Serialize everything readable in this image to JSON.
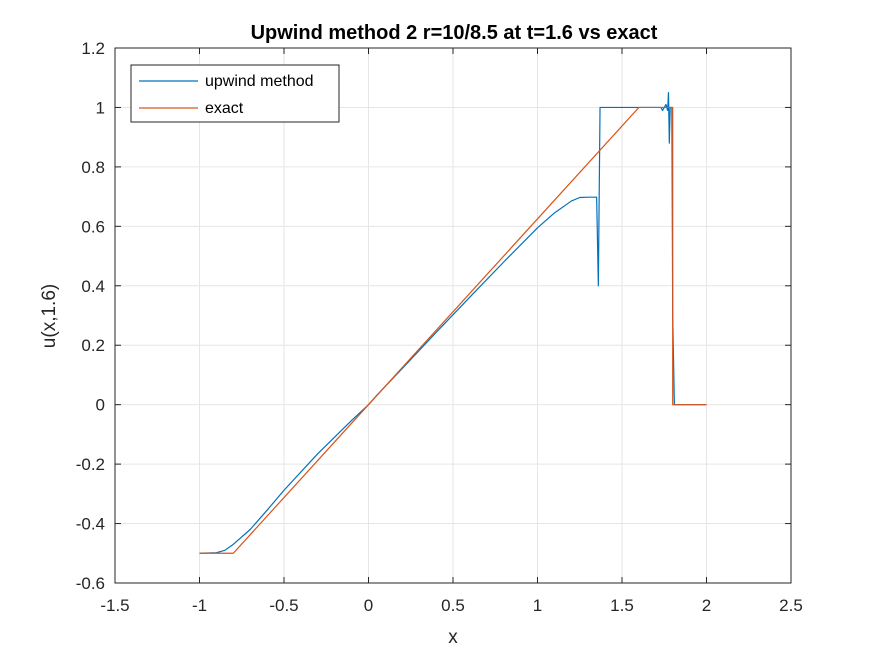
{
  "chart_data": {
    "type": "line",
    "title": "Upwind method 2 r=10/8.5 at t=1.6 vs exact",
    "xlabel": "x",
    "ylabel": "u(x,1.6)",
    "xlim": [
      -1.5,
      2.5
    ],
    "ylim": [
      -0.6,
      1.2
    ],
    "xticks": [
      -1.5,
      -1,
      -0.5,
      0,
      0.5,
      1,
      1.5,
      2,
      2.5
    ],
    "xtick_labels": [
      "-1.5",
      "-1",
      "-0.5",
      "0",
      "0.5",
      "1",
      "1.5",
      "2",
      "2.5"
    ],
    "yticks": [
      -0.6,
      -0.4,
      -0.2,
      0,
      0.2,
      0.4,
      0.6,
      0.8,
      1,
      1.2
    ],
    "ytick_labels": [
      "-0.6",
      "-0.4",
      "-0.2",
      "0",
      "0.2",
      "0.4",
      "0.6",
      "0.8",
      "1",
      "1.2"
    ],
    "grid": true,
    "legend_position": "top-left",
    "series": [
      {
        "name": "upwind method",
        "color": "#0072BD",
        "x": [
          -1.0,
          -0.9,
          -0.85,
          -0.8,
          -0.7,
          -0.6,
          -0.5,
          -0.3,
          -0.1,
          0.0,
          0.05,
          0.2,
          0.4,
          0.6,
          0.8,
          1.0,
          1.1,
          1.2,
          1.25,
          1.3,
          1.35,
          1.36,
          1.37,
          1.38,
          1.5,
          1.6,
          1.65,
          1.7,
          1.72,
          1.73,
          1.74,
          1.76,
          1.77,
          1.775,
          1.78,
          1.785,
          1.79,
          1.795,
          1.8,
          1.81,
          1.815,
          1.82,
          1.9,
          2.0
        ],
        "y": [
          -0.5,
          -0.498,
          -0.49,
          -0.47,
          -0.42,
          -0.355,
          -0.288,
          -0.165,
          -0.053,
          0.0,
          0.032,
          0.122,
          0.243,
          0.362,
          0.48,
          0.595,
          0.645,
          0.685,
          0.697,
          0.698,
          0.698,
          0.4,
          1.0,
          1.0,
          1.0,
          1.0,
          1.0,
          1.0,
          1.0,
          1.0,
          0.99,
          1.01,
          0.99,
          1.05,
          0.88,
          1.0,
          1.0,
          1.0,
          0.3,
          0.0,
          0.0,
          0.0,
          0.0,
          0.0
        ]
      },
      {
        "name": "exact",
        "color": "#D95319",
        "x": [
          -1.0,
          -0.8,
          1.6,
          1.8,
          1.8,
          2.0
        ],
        "y": [
          -0.5,
          -0.5,
          1.0,
          1.0,
          0.0,
          0.0
        ]
      }
    ]
  }
}
